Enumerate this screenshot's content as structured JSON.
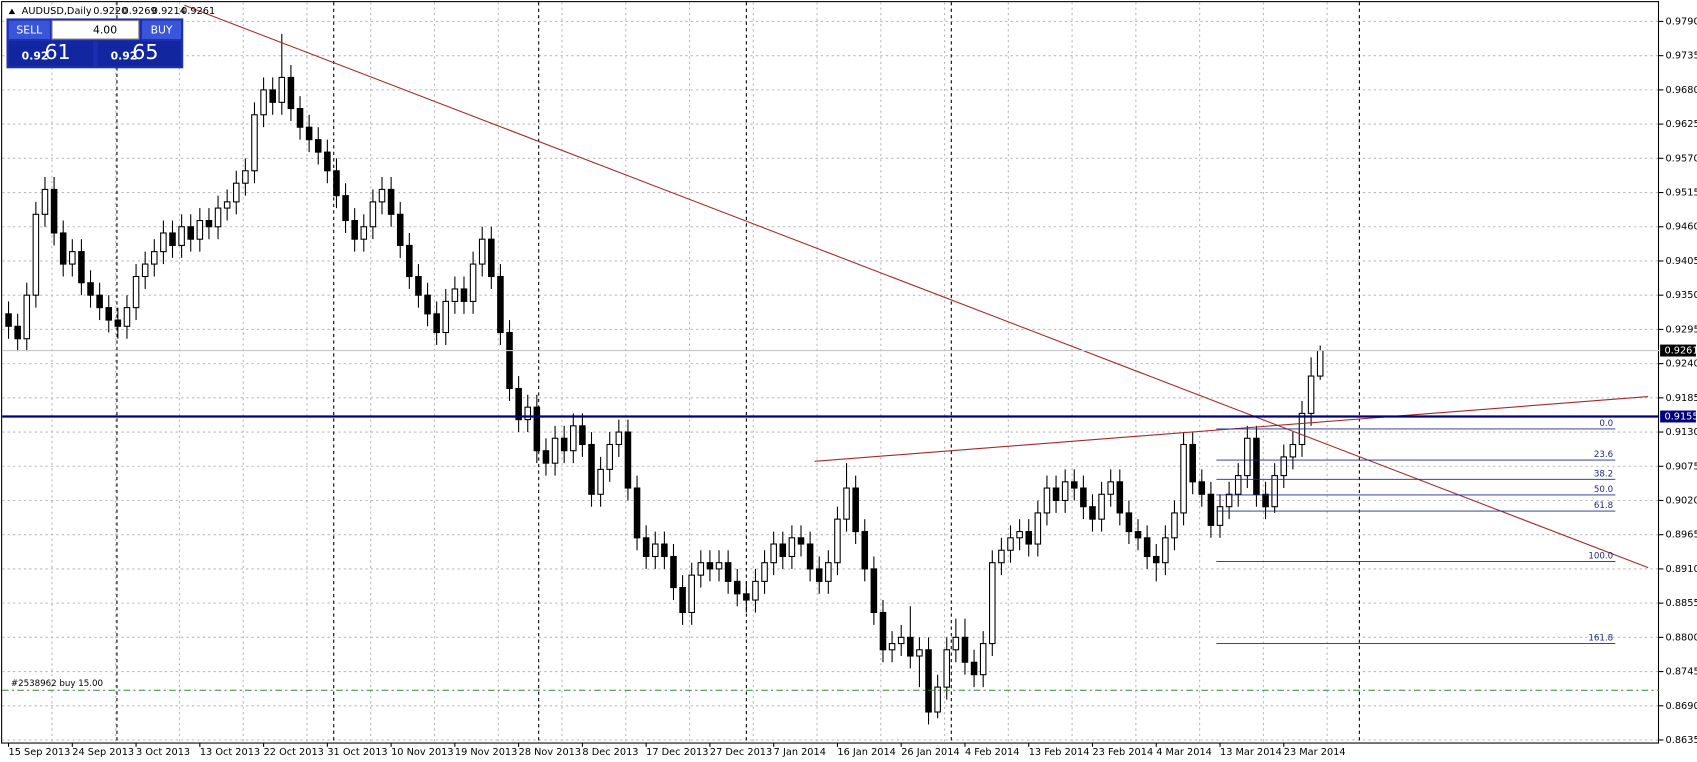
{
  "chart_data": {
    "type": "candlestick",
    "header": {
      "symbol": "AUDUSD,Daily",
      "ohlc": [
        "0.9220",
        "0.9269",
        "0.9214",
        "0.9261"
      ]
    },
    "trade_panel": {
      "sell": "SELL",
      "buy": "BUY",
      "lots": "4.00",
      "bid": [
        "0.92",
        "61"
      ],
      "ask": [
        "0.92",
        "65"
      ]
    },
    "xlim": [
      -0.7,
      181.2
    ],
    "ylim": [
      0.8631,
      0.9821
    ],
    "yticks": [
      {
        "value": 0.979,
        "label": "0.9790"
      },
      {
        "value": 0.9735,
        "label": "0.9735"
      },
      {
        "value": 0.968,
        "label": "0.9680"
      },
      {
        "value": 0.9625,
        "label": "0.9625"
      },
      {
        "value": 0.957,
        "label": "0.9570"
      },
      {
        "value": 0.9515,
        "label": "0.9515"
      },
      {
        "value": 0.946,
        "label": "0.9460"
      },
      {
        "value": 0.9405,
        "label": "0.9405"
      },
      {
        "value": 0.935,
        "label": "0.9350"
      },
      {
        "value": 0.9295,
        "label": "0.9295"
      },
      {
        "value": 0.924,
        "label": "0.9240"
      },
      {
        "value": 0.9185,
        "label": "0.9185"
      },
      {
        "value": 0.913,
        "label": "0.9130"
      },
      {
        "value": 0.9075,
        "label": "0.9075"
      },
      {
        "value": 0.902,
        "label": "0.9020"
      },
      {
        "value": 0.8965,
        "label": "0.8965"
      },
      {
        "value": 0.891,
        "label": "0.8910"
      },
      {
        "value": 0.8855,
        "label": "0.8855"
      },
      {
        "value": 0.88,
        "label": "0.8800"
      },
      {
        "value": 0.8745,
        "label": "0.8745"
      },
      {
        "value": 0.869,
        "label": "0.8690"
      },
      {
        "value": 0.8635,
        "label": "0.8635"
      }
    ],
    "xticks": [
      {
        "value": 0,
        "label": "15 Sep 2013"
      },
      {
        "value": 7,
        "label": "24 Sep 2013"
      },
      {
        "value": 14,
        "label": "3 Oct 2013"
      },
      {
        "value": 21,
        "label": "13 Oct 2013"
      },
      {
        "value": 28,
        "label": "22 Oct 2013"
      },
      {
        "value": 35,
        "label": "31 Oct 2013"
      },
      {
        "value": 42,
        "label": "10 Nov 2013"
      },
      {
        "value": 49,
        "label": "19 Nov 2013"
      },
      {
        "value": 56,
        "label": "28 Nov 2013"
      },
      {
        "value": 63,
        "label": "8 Dec 2013"
      },
      {
        "value": 70,
        "label": "17 Dec 2013"
      },
      {
        "value": 77,
        "label": "27 Dec 2013"
      },
      {
        "value": 84,
        "label": "7 Jan 2014"
      },
      {
        "value": 91,
        "label": "16 Jan 2014"
      },
      {
        "value": 98,
        "label": "26 Jan 2014"
      },
      {
        "value": 105,
        "label": "4 Feb 2014"
      },
      {
        "value": 112,
        "label": "13 Feb 2014"
      },
      {
        "value": 119,
        "label": "23 Feb 2014"
      },
      {
        "value": 126,
        "label": "4 Mar 2014"
      },
      {
        "value": 133,
        "label": "13 Mar 2014"
      },
      {
        "value": 140,
        "label": "23 Mar 2014"
      }
    ],
    "grid": true,
    "separators": [
      11.9,
      35.7,
      58.2,
      81,
      103.5,
      148.3
    ],
    "current_price": {
      "value": 0.9261,
      "label": "0.9261"
    },
    "level_line": {
      "value": 0.9155,
      "label": "0.9155",
      "color": "#00007f"
    },
    "order_line": {
      "value": 0.8715,
      "label": "#2538962 buy 15.00",
      "color": "#2e8b2e"
    },
    "trendlines": [
      {
        "x": [
          19.3,
          180
        ],
        "y": [
          0.9816,
          0.8912
        ],
        "color": "#a52a2a"
      },
      {
        "x": [
          88.5,
          180
        ],
        "y": [
          0.9083,
          0.9187
        ],
        "color": "#a52a2a"
      }
    ],
    "fibo": {
      "x": [
        132.6,
        176.4
      ],
      "color": "#1f2a80",
      "levels": [
        {
          "value": 0.9135,
          "label": "0.0"
        },
        {
          "value": 0.9085,
          "label": "23.6"
        },
        {
          "value": 0.9054,
          "label": "38.2"
        },
        {
          "value": 0.9029,
          "label": "50.0"
        },
        {
          "value": 0.9003,
          "label": "61.8"
        },
        {
          "value": 0.8922,
          "label": "100.0"
        },
        {
          "value": 0.879,
          "label": "161.8"
        }
      ]
    },
    "candles": [
      [
        0.932,
        0.934,
        0.928,
        0.93
      ],
      [
        0.93,
        0.932,
        0.926,
        0.928
      ],
      [
        0.928,
        0.937,
        0.926,
        0.935
      ],
      [
        0.935,
        0.95,
        0.933,
        0.948
      ],
      [
        0.948,
        0.954,
        0.946,
        0.952
      ],
      [
        0.952,
        0.954,
        0.943,
        0.945
      ],
      [
        0.945,
        0.947,
        0.938,
        0.94
      ],
      [
        0.94,
        0.944,
        0.938,
        0.942
      ],
      [
        0.942,
        0.944,
        0.935,
        0.937
      ],
      [
        0.937,
        0.939,
        0.933,
        0.935
      ],
      [
        0.935,
        0.937,
        0.931,
        0.933
      ],
      [
        0.933,
        0.935,
        0.929,
        0.931
      ],
      [
        0.931,
        0.933,
        0.928,
        0.93
      ],
      [
        0.93,
        0.935,
        0.928,
        0.933
      ],
      [
        0.933,
        0.94,
        0.931,
        0.938
      ],
      [
        0.938,
        0.942,
        0.936,
        0.94
      ],
      [
        0.94,
        0.944,
        0.938,
        0.942
      ],
      [
        0.942,
        0.947,
        0.94,
        0.945
      ],
      [
        0.945,
        0.947,
        0.941,
        0.943
      ],
      [
        0.943,
        0.948,
        0.941,
        0.946
      ],
      [
        0.946,
        0.948,
        0.942,
        0.944
      ],
      [
        0.944,
        0.949,
        0.942,
        0.947
      ],
      [
        0.947,
        0.949,
        0.944,
        0.946
      ],
      [
        0.946,
        0.951,
        0.944,
        0.949
      ],
      [
        0.949,
        0.952,
        0.947,
        0.95
      ],
      [
        0.95,
        0.955,
        0.948,
        0.953
      ],
      [
        0.953,
        0.957,
        0.951,
        0.955
      ],
      [
        0.955,
        0.966,
        0.953,
        0.964
      ],
      [
        0.964,
        0.97,
        0.962,
        0.968
      ],
      [
        0.968,
        0.97,
        0.964,
        0.966
      ],
      [
        0.966,
        0.977,
        0.964,
        0.97
      ],
      [
        0.97,
        0.972,
        0.963,
        0.965
      ],
      [
        0.965,
        0.967,
        0.96,
        0.962
      ],
      [
        0.962,
        0.964,
        0.958,
        0.96
      ],
      [
        0.96,
        0.962,
        0.956,
        0.958
      ],
      [
        0.958,
        0.96,
        0.953,
        0.955
      ],
      [
        0.955,
        0.957,
        0.949,
        0.951
      ],
      [
        0.951,
        0.953,
        0.945,
        0.947
      ],
      [
        0.947,
        0.949,
        0.942,
        0.944
      ],
      [
        0.944,
        0.948,
        0.942,
        0.946
      ],
      [
        0.946,
        0.952,
        0.944,
        0.95
      ],
      [
        0.95,
        0.954,
        0.948,
        0.952
      ],
      [
        0.952,
        0.954,
        0.946,
        0.948
      ],
      [
        0.948,
        0.95,
        0.941,
        0.943
      ],
      [
        0.943,
        0.945,
        0.936,
        0.938
      ],
      [
        0.938,
        0.94,
        0.933,
        0.935
      ],
      [
        0.935,
        0.937,
        0.93,
        0.932
      ],
      [
        0.932,
        0.934,
        0.927,
        0.929
      ],
      [
        0.929,
        0.936,
        0.927,
        0.934
      ],
      [
        0.934,
        0.938,
        0.932,
        0.936
      ],
      [
        0.936,
        0.938,
        0.932,
        0.934
      ],
      [
        0.934,
        0.942,
        0.932,
        0.94
      ],
      [
        0.94,
        0.946,
        0.938,
        0.944
      ],
      [
        0.944,
        0.946,
        0.936,
        0.938
      ],
      [
        0.938,
        0.94,
        0.927,
        0.929
      ],
      [
        0.929,
        0.931,
        0.918,
        0.92
      ],
      [
        0.92,
        0.922,
        0.913,
        0.915
      ],
      [
        0.915,
        0.919,
        0.913,
        0.917
      ],
      [
        0.917,
        0.919,
        0.908,
        0.91
      ],
      [
        0.91,
        0.912,
        0.906,
        0.908
      ],
      [
        0.908,
        0.914,
        0.906,
        0.912
      ],
      [
        0.912,
        0.914,
        0.908,
        0.91
      ],
      [
        0.91,
        0.916,
        0.908,
        0.914
      ],
      [
        0.914,
        0.916,
        0.909,
        0.911
      ],
      [
        0.911,
        0.913,
        0.901,
        0.903
      ],
      [
        0.903,
        0.909,
        0.901,
        0.907
      ],
      [
        0.907,
        0.913,
        0.905,
        0.911
      ],
      [
        0.911,
        0.915,
        0.909,
        0.913
      ],
      [
        0.913,
        0.915,
        0.902,
        0.904
      ],
      [
        0.904,
        0.906,
        0.894,
        0.896
      ],
      [
        0.896,
        0.898,
        0.891,
        0.893
      ],
      [
        0.893,
        0.897,
        0.891,
        0.895
      ],
      [
        0.895,
        0.897,
        0.891,
        0.893
      ],
      [
        0.893,
        0.895,
        0.886,
        0.888
      ],
      [
        0.888,
        0.89,
        0.882,
        0.884
      ],
      [
        0.884,
        0.892,
        0.882,
        0.89
      ],
      [
        0.89,
        0.894,
        0.888,
        0.892
      ],
      [
        0.892,
        0.894,
        0.889,
        0.891
      ],
      [
        0.891,
        0.894,
        0.889,
        0.892
      ],
      [
        0.892,
        0.894,
        0.887,
        0.889
      ],
      [
        0.889,
        0.891,
        0.885,
        0.887
      ],
      [
        0.887,
        0.889,
        0.884,
        0.886
      ],
      [
        0.886,
        0.891,
        0.884,
        0.889
      ],
      [
        0.889,
        0.894,
        0.887,
        0.892
      ],
      [
        0.892,
        0.897,
        0.89,
        0.895
      ],
      [
        0.895,
        0.897,
        0.891,
        0.893
      ],
      [
        0.893,
        0.898,
        0.891,
        0.896
      ],
      [
        0.896,
        0.898,
        0.893,
        0.895
      ],
      [
        0.895,
        0.897,
        0.889,
        0.891
      ],
      [
        0.891,
        0.893,
        0.887,
        0.889
      ],
      [
        0.889,
        0.894,
        0.887,
        0.892
      ],
      [
        0.892,
        0.901,
        0.89,
        0.899
      ],
      [
        0.899,
        0.908,
        0.897,
        0.904
      ],
      [
        0.904,
        0.906,
        0.895,
        0.897
      ],
      [
        0.897,
        0.899,
        0.889,
        0.891
      ],
      [
        0.891,
        0.893,
        0.882,
        0.884
      ],
      [
        0.884,
        0.886,
        0.876,
        0.878
      ],
      [
        0.878,
        0.881,
        0.876,
        0.879
      ],
      [
        0.879,
        0.882,
        0.877,
        0.88
      ],
      [
        0.88,
        0.885,
        0.875,
        0.877
      ],
      [
        0.877,
        0.88,
        0.872,
        0.878
      ],
      [
        0.878,
        0.88,
        0.866,
        0.868
      ],
      [
        0.868,
        0.874,
        0.867,
        0.872
      ],
      [
        0.872,
        0.88,
        0.87,
        0.878
      ],
      [
        0.878,
        0.883,
        0.876,
        0.88
      ],
      [
        0.88,
        0.883,
        0.874,
        0.876
      ],
      [
        0.876,
        0.878,
        0.872,
        0.874
      ],
      [
        0.874,
        0.881,
        0.872,
        0.879
      ],
      [
        0.879,
        0.894,
        0.877,
        0.892
      ],
      [
        0.892,
        0.896,
        0.89,
        0.894
      ],
      [
        0.894,
        0.898,
        0.892,
        0.896
      ],
      [
        0.896,
        0.899,
        0.894,
        0.897
      ],
      [
        0.897,
        0.899,
        0.893,
        0.895
      ],
      [
        0.895,
        0.902,
        0.893,
        0.9
      ],
      [
        0.9,
        0.906,
        0.898,
        0.904
      ],
      [
        0.904,
        0.906,
        0.9,
        0.902
      ],
      [
        0.902,
        0.907,
        0.9,
        0.905
      ],
      [
        0.905,
        0.907,
        0.902,
        0.904
      ],
      [
        0.904,
        0.906,
        0.899,
        0.901
      ],
      [
        0.901,
        0.903,
        0.897,
        0.899
      ],
      [
        0.899,
        0.905,
        0.897,
        0.903
      ],
      [
        0.903,
        0.907,
        0.901,
        0.905
      ],
      [
        0.905,
        0.907,
        0.898,
        0.9
      ],
      [
        0.9,
        0.902,
        0.895,
        0.897
      ],
      [
        0.897,
        0.899,
        0.894,
        0.896
      ],
      [
        0.896,
        0.898,
        0.891,
        0.893
      ],
      [
        0.893,
        0.895,
        0.889,
        0.892
      ],
      [
        0.892,
        0.898,
        0.89,
        0.896
      ],
      [
        0.896,
        0.902,
        0.894,
        0.9
      ],
      [
        0.9,
        0.913,
        0.898,
        0.911
      ],
      [
        0.911,
        0.913,
        0.903,
        0.905
      ],
      [
        0.905,
        0.907,
        0.901,
        0.903
      ],
      [
        0.903,
        0.905,
        0.896,
        0.898
      ],
      [
        0.898,
        0.903,
        0.896,
        0.901
      ],
      [
        0.901,
        0.905,
        0.899,
        0.903
      ],
      [
        0.903,
        0.908,
        0.901,
        0.906
      ],
      [
        0.906,
        0.914,
        0.904,
        0.912
      ],
      [
        0.912,
        0.914,
        0.901,
        0.903
      ],
      [
        0.903,
        0.905,
        0.899,
        0.901
      ],
      [
        0.901,
        0.908,
        0.9,
        0.906
      ],
      [
        0.906,
        0.911,
        0.904,
        0.909
      ],
      [
        0.909,
        0.913,
        0.907,
        0.911
      ],
      [
        0.911,
        0.918,
        0.909,
        0.916
      ],
      [
        0.916,
        0.925,
        0.914,
        0.922
      ],
      [
        0.922,
        0.9269,
        0.9214,
        0.9261
      ]
    ]
  }
}
